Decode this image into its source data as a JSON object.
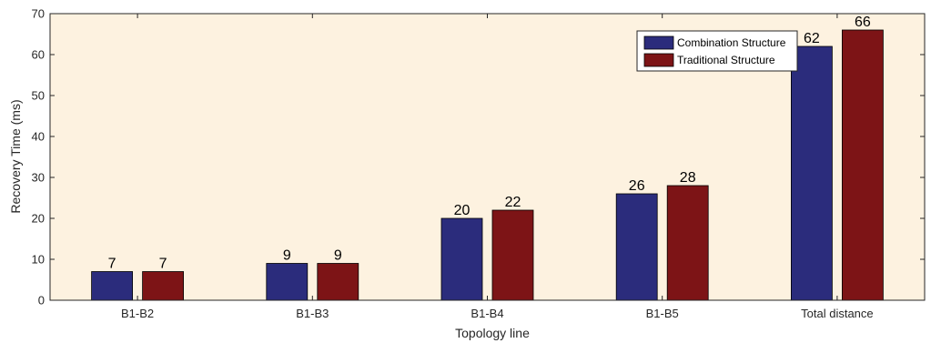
{
  "chart_data": {
    "type": "bar",
    "categories": [
      "B1-B2",
      "B1-B3",
      "B1-B4",
      "B1-B5",
      "Total distance"
    ],
    "series": [
      {
        "name": "Combination Structure",
        "values": [
          7,
          9,
          20,
          26,
          62
        ],
        "color": "#2b2c7c"
      },
      {
        "name": "Traditional Structure",
        "values": [
          7,
          9,
          22,
          28,
          66
        ],
        "color": "#7d1416"
      }
    ],
    "title": "",
    "xlabel": "Topology line",
    "ylabel": "Recovery Time (ms)",
    "ylim": [
      0,
      70
    ],
    "yticks": [
      "0",
      "10",
      "20",
      "30",
      "40",
      "50",
      "60",
      "70"
    ],
    "grid": false,
    "legend_position": "top-right",
    "plot_background": "#fdf2e0"
  }
}
